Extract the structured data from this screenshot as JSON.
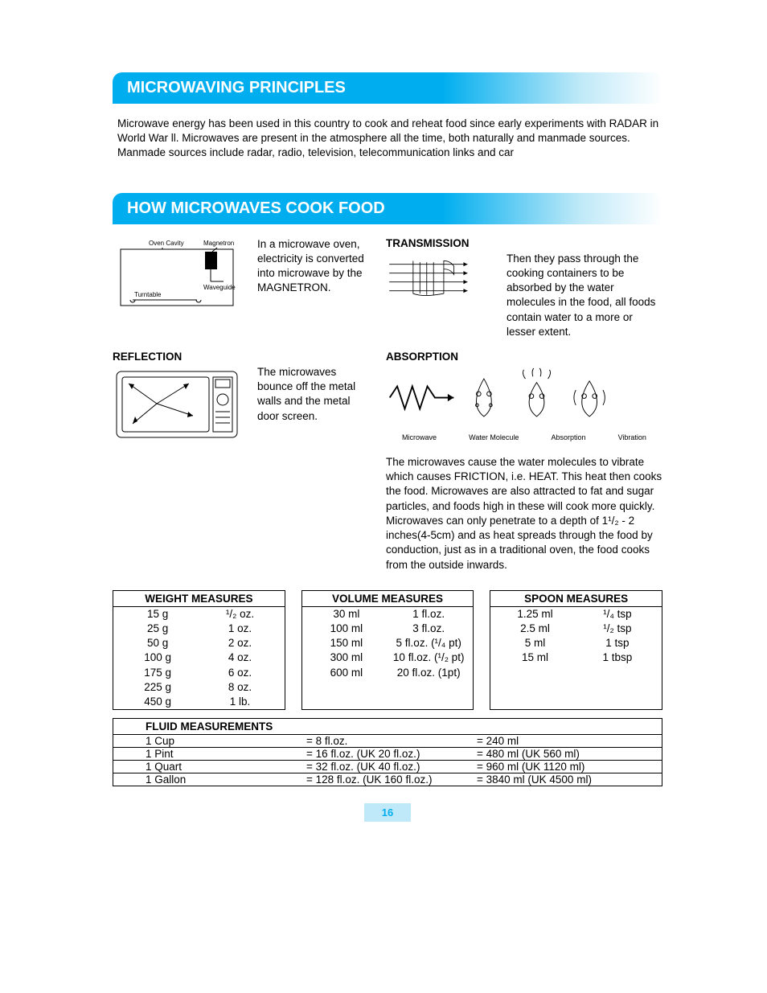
{
  "colors": {
    "accent": "#00aeef",
    "accent_light": "#bfe9f8"
  },
  "section1": {
    "title": "MICROWAVING PRINCIPLES",
    "body": "Microwave energy has been used in this country to cook and reheat food since early experiments with RADAR in World War ll. Microwaves are present in the atmosphere all the time, both naturally and manmade sources. Manmade sources include radar, radio, television, telecommunication links and car"
  },
  "section2": {
    "title": "HOW MICROWAVES COOK FOOD",
    "magnetron_text": "In a microwave oven, electricity is converted into microwave by the MAGNETRON.",
    "reflection_title": "REFLECTION",
    "reflection_text": "The microwaves bounce off the metal walls and the metal door screen.",
    "transmission_title": "TRANSMISSION",
    "transmission_text": "Then they pass through the cooking containers to be absorbed by the water molecules in the food, all foods contain water to a more or lesser extent.",
    "absorption_title": "ABSORPTION",
    "absorption_text": "The microwaves cause the water molecules to vibrate which causes FRICTION, i.e. HEAT. This heat then cooks the food. Microwaves are also attracted to fat and sugar particles, and foods high in these will cook more quickly. Microwaves can only penetrate to a depth of 1¹/₂ - 2 inches(4-5cm) and as heat spreads through the food by conduction, just as in a traditional oven, the food cooks from the outside inwards.",
    "diagram_labels": {
      "oven_cavity": "Oven Cavity",
      "magnetron": "Magnetron",
      "waveguide": "Waveguide",
      "turntable": "Turntable",
      "microwave": "Microwave",
      "water_molecule": "Water Molecule",
      "absorption": "Absorption",
      "vibration": "Vibration"
    }
  },
  "tables": {
    "weight": {
      "title": "WEIGHT MEASURES",
      "rows": [
        [
          "15 g",
          "¹/₂ oz."
        ],
        [
          "25 g",
          "1 oz."
        ],
        [
          "50 g",
          "2 oz."
        ],
        [
          "100 g",
          "4 oz."
        ],
        [
          "175 g",
          "6 oz."
        ],
        [
          "225 g",
          "8 oz."
        ],
        [
          "450 g",
          "1 lb."
        ]
      ]
    },
    "volume": {
      "title": "VOLUME MEASURES",
      "rows": [
        [
          "30 ml",
          "1 fl.oz."
        ],
        [
          "100 ml",
          "3 fl.oz."
        ],
        [
          "150 ml",
          "5 fl.oz. (¹/₄ pt)"
        ],
        [
          "300 ml",
          "10 fl.oz. (¹/₂ pt)"
        ],
        [
          "600 ml",
          "20 fl.oz. (1pt)"
        ]
      ]
    },
    "spoon": {
      "title": "SPOON MEASURES",
      "rows": [
        [
          "1.25 ml",
          "¹/₄ tsp"
        ],
        [
          "2.5 ml",
          "¹/₂ tsp"
        ],
        [
          "5 ml",
          "1 tsp"
        ],
        [
          "15 ml",
          "1 tbsp"
        ]
      ]
    },
    "fluid": {
      "title": "FLUID MEASUREMENTS",
      "rows": [
        [
          "1 Cup",
          "= 8 fl.oz.",
          "= 240 ml"
        ],
        [
          "1 Pint",
          "= 16 fl.oz. (UK 20 fl.oz.)",
          "= 480 ml (UK 560 ml)"
        ],
        [
          "1 Quart",
          "= 32 fl.oz. (UK 40 fl.oz.)",
          "= 960 ml (UK 1120 ml)"
        ],
        [
          "1 Gallon",
          "= 128 fl.oz. (UK 160 fl.oz.)",
          "= 3840 ml (UK 4500 ml)"
        ]
      ]
    }
  },
  "page_number": "16"
}
